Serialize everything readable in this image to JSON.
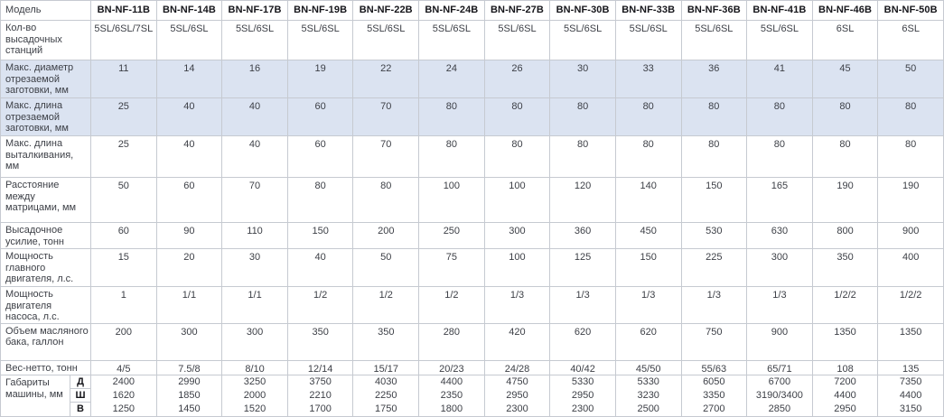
{
  "table": {
    "model_header": "Модель",
    "models": [
      "BN-NF-11B",
      "BN-NF-14B",
      "BN-NF-17B",
      "BN-NF-19B",
      "BN-NF-22B",
      "BN-NF-24B",
      "BN-NF-27B",
      "BN-NF-30B",
      "BN-NF-33B",
      "BN-NF-36B",
      "BN-NF-41B",
      "BN-NF-46B",
      "BN-NF-50B"
    ],
    "rows": [
      {
        "id": "stations",
        "label": "Кол-во высадочных станций",
        "highlight": false,
        "values": [
          "5SL/6SL/7SL",
          "5SL/6SL",
          "5SL/6SL",
          "5SL/6SL",
          "5SL/6SL",
          "5SL/6SL",
          "5SL/6SL",
          "5SL/6SL",
          "5SL/6SL",
          "5SL/6SL",
          "5SL/6SL",
          "6SL",
          "6SL"
        ]
      },
      {
        "id": "max-diameter",
        "label": "Макс. диаметр отрезаемой заготовки, мм",
        "highlight": true,
        "values": [
          "11",
          "14",
          "16",
          "19",
          "22",
          "24",
          "26",
          "30",
          "33",
          "36",
          "41",
          "45",
          "50"
        ]
      },
      {
        "id": "max-cut-length",
        "label": "Макс. длина отрезаемой заготовки, мм",
        "highlight": true,
        "values": [
          "25",
          "40",
          "40",
          "60",
          "70",
          "80",
          "80",
          "80",
          "80",
          "80",
          "80",
          "80",
          "80"
        ]
      },
      {
        "id": "max-eject-length",
        "label": "Макс. длина выталкивания, мм",
        "highlight": false,
        "values": [
          "25",
          "40",
          "40",
          "60",
          "70",
          "80",
          "80",
          "80",
          "80",
          "80",
          "80",
          "80",
          "80"
        ]
      },
      {
        "id": "die-distance",
        "label": "Расстояние между матрицами, мм",
        "highlight": false,
        "values": [
          "50",
          "60",
          "70",
          "80",
          "80",
          "100",
          "100",
          "120",
          "140",
          "150",
          "165",
          "190",
          "190"
        ]
      },
      {
        "id": "upset-force",
        "label": "Высадочное усилие, тонн",
        "highlight": false,
        "values": [
          "60",
          "90",
          "110",
          "150",
          "200",
          "250",
          "300",
          "360",
          "450",
          "530",
          "630",
          "800",
          "900"
        ]
      },
      {
        "id": "main-motor-power",
        "label": "Мощность главного двигателя, л.с.",
        "highlight": false,
        "values": [
          "15",
          "20",
          "30",
          "40",
          "50",
          "75",
          "100",
          "125",
          "150",
          "225",
          "300",
          "350",
          "400"
        ]
      },
      {
        "id": "pump-motor-power",
        "label": "Мощность двигателя насоса, л.с.",
        "highlight": false,
        "values": [
          "1",
          "1/1",
          "1/1",
          "1/2",
          "1/2",
          "1/2",
          "1/3",
          "1/3",
          "1/3",
          "1/3",
          "1/3",
          "1/2/2",
          "1/2/2"
        ]
      },
      {
        "id": "oil-tank-volume",
        "label": "Объем масляного бака, галлон",
        "highlight": false,
        "values": [
          "200",
          "300",
          "300",
          "350",
          "350",
          "280",
          "420",
          "620",
          "620",
          "750",
          "900",
          "1350",
          "1350"
        ]
      },
      {
        "id": "net-weight",
        "label": "Вес-нетто, тонн",
        "highlight": false,
        "values": [
          "4/5",
          "7.5/8",
          "8/10",
          "12/14",
          "15/17",
          "20/23",
          "24/28",
          "40/42",
          "45/50",
          "55/63",
          "65/71",
          "108",
          "135"
        ]
      }
    ],
    "dimensions": {
      "label": "Габариты машины, мм",
      "axes": [
        "Д",
        "Ш",
        "В"
      ],
      "values": {
        "d": [
          "2400",
          "2990",
          "3250",
          "3750",
          "4030",
          "4400",
          "4750",
          "5330",
          "5330",
          "6050",
          "6700",
          "7200",
          "7350"
        ],
        "sh": [
          "1620",
          "1850",
          "2000",
          "2210",
          "2250",
          "2350",
          "2950",
          "2950",
          "3230",
          "3350",
          "3190/3400",
          "4400",
          "4400"
        ],
        "v": [
          "1250",
          "1450",
          "1520",
          "1700",
          "1750",
          "1800",
          "2300",
          "2300",
          "2500",
          "2700",
          "2850",
          "2950",
          "3150"
        ]
      }
    }
  },
  "colors": {
    "highlight": "#dbe3f1",
    "border": "#c6cad1",
    "text": "#3c3f46",
    "header_text": "#15151a"
  }
}
